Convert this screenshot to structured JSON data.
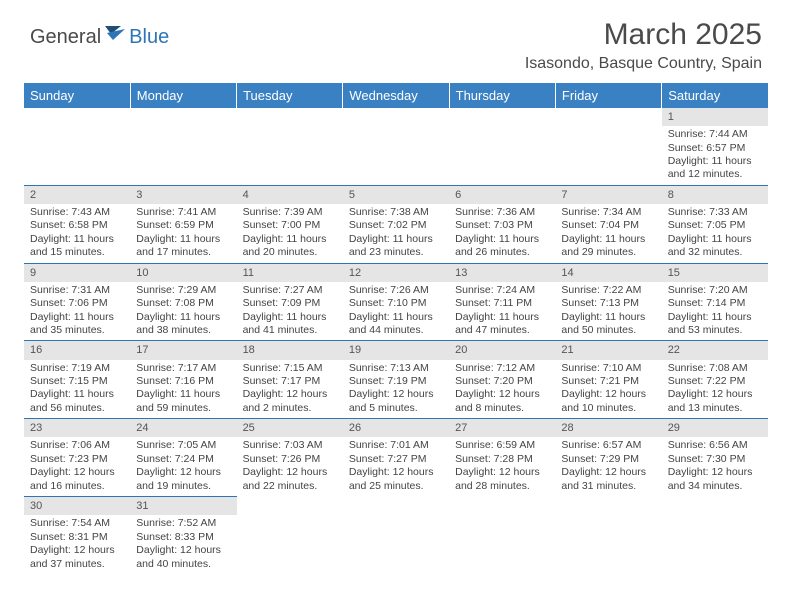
{
  "brand": {
    "part1": "General",
    "part2": "Blue"
  },
  "title": "March 2025",
  "location": "Isasondo, Basque Country, Spain",
  "colors": {
    "header_bg": "#3a81c3",
    "header_text": "#ffffff",
    "border": "#2e75b6",
    "daynum_bg": "#e5e5e5",
    "text": "#444444",
    "brand_blue": "#2e75b6",
    "brand_gray": "#4a4a4a"
  },
  "weekdays": [
    "Sunday",
    "Monday",
    "Tuesday",
    "Wednesday",
    "Thursday",
    "Friday",
    "Saturday"
  ],
  "weeks": [
    [
      null,
      null,
      null,
      null,
      null,
      null,
      {
        "n": "1",
        "sr": "Sunrise: 7:44 AM",
        "ss": "Sunset: 6:57 PM",
        "dl": "Daylight: 11 hours and 12 minutes."
      }
    ],
    [
      {
        "n": "2",
        "sr": "Sunrise: 7:43 AM",
        "ss": "Sunset: 6:58 PM",
        "dl": "Daylight: 11 hours and 15 minutes."
      },
      {
        "n": "3",
        "sr": "Sunrise: 7:41 AM",
        "ss": "Sunset: 6:59 PM",
        "dl": "Daylight: 11 hours and 17 minutes."
      },
      {
        "n": "4",
        "sr": "Sunrise: 7:39 AM",
        "ss": "Sunset: 7:00 PM",
        "dl": "Daylight: 11 hours and 20 minutes."
      },
      {
        "n": "5",
        "sr": "Sunrise: 7:38 AM",
        "ss": "Sunset: 7:02 PM",
        "dl": "Daylight: 11 hours and 23 minutes."
      },
      {
        "n": "6",
        "sr": "Sunrise: 7:36 AM",
        "ss": "Sunset: 7:03 PM",
        "dl": "Daylight: 11 hours and 26 minutes."
      },
      {
        "n": "7",
        "sr": "Sunrise: 7:34 AM",
        "ss": "Sunset: 7:04 PM",
        "dl": "Daylight: 11 hours and 29 minutes."
      },
      {
        "n": "8",
        "sr": "Sunrise: 7:33 AM",
        "ss": "Sunset: 7:05 PM",
        "dl": "Daylight: 11 hours and 32 minutes."
      }
    ],
    [
      {
        "n": "9",
        "sr": "Sunrise: 7:31 AM",
        "ss": "Sunset: 7:06 PM",
        "dl": "Daylight: 11 hours and 35 minutes."
      },
      {
        "n": "10",
        "sr": "Sunrise: 7:29 AM",
        "ss": "Sunset: 7:08 PM",
        "dl": "Daylight: 11 hours and 38 minutes."
      },
      {
        "n": "11",
        "sr": "Sunrise: 7:27 AM",
        "ss": "Sunset: 7:09 PM",
        "dl": "Daylight: 11 hours and 41 minutes."
      },
      {
        "n": "12",
        "sr": "Sunrise: 7:26 AM",
        "ss": "Sunset: 7:10 PM",
        "dl": "Daylight: 11 hours and 44 minutes."
      },
      {
        "n": "13",
        "sr": "Sunrise: 7:24 AM",
        "ss": "Sunset: 7:11 PM",
        "dl": "Daylight: 11 hours and 47 minutes."
      },
      {
        "n": "14",
        "sr": "Sunrise: 7:22 AM",
        "ss": "Sunset: 7:13 PM",
        "dl": "Daylight: 11 hours and 50 minutes."
      },
      {
        "n": "15",
        "sr": "Sunrise: 7:20 AM",
        "ss": "Sunset: 7:14 PM",
        "dl": "Daylight: 11 hours and 53 minutes."
      }
    ],
    [
      {
        "n": "16",
        "sr": "Sunrise: 7:19 AM",
        "ss": "Sunset: 7:15 PM",
        "dl": "Daylight: 11 hours and 56 minutes."
      },
      {
        "n": "17",
        "sr": "Sunrise: 7:17 AM",
        "ss": "Sunset: 7:16 PM",
        "dl": "Daylight: 11 hours and 59 minutes."
      },
      {
        "n": "18",
        "sr": "Sunrise: 7:15 AM",
        "ss": "Sunset: 7:17 PM",
        "dl": "Daylight: 12 hours and 2 minutes."
      },
      {
        "n": "19",
        "sr": "Sunrise: 7:13 AM",
        "ss": "Sunset: 7:19 PM",
        "dl": "Daylight: 12 hours and 5 minutes."
      },
      {
        "n": "20",
        "sr": "Sunrise: 7:12 AM",
        "ss": "Sunset: 7:20 PM",
        "dl": "Daylight: 12 hours and 8 minutes."
      },
      {
        "n": "21",
        "sr": "Sunrise: 7:10 AM",
        "ss": "Sunset: 7:21 PM",
        "dl": "Daylight: 12 hours and 10 minutes."
      },
      {
        "n": "22",
        "sr": "Sunrise: 7:08 AM",
        "ss": "Sunset: 7:22 PM",
        "dl": "Daylight: 12 hours and 13 minutes."
      }
    ],
    [
      {
        "n": "23",
        "sr": "Sunrise: 7:06 AM",
        "ss": "Sunset: 7:23 PM",
        "dl": "Daylight: 12 hours and 16 minutes."
      },
      {
        "n": "24",
        "sr": "Sunrise: 7:05 AM",
        "ss": "Sunset: 7:24 PM",
        "dl": "Daylight: 12 hours and 19 minutes."
      },
      {
        "n": "25",
        "sr": "Sunrise: 7:03 AM",
        "ss": "Sunset: 7:26 PM",
        "dl": "Daylight: 12 hours and 22 minutes."
      },
      {
        "n": "26",
        "sr": "Sunrise: 7:01 AM",
        "ss": "Sunset: 7:27 PM",
        "dl": "Daylight: 12 hours and 25 minutes."
      },
      {
        "n": "27",
        "sr": "Sunrise: 6:59 AM",
        "ss": "Sunset: 7:28 PM",
        "dl": "Daylight: 12 hours and 28 minutes."
      },
      {
        "n": "28",
        "sr": "Sunrise: 6:57 AM",
        "ss": "Sunset: 7:29 PM",
        "dl": "Daylight: 12 hours and 31 minutes."
      },
      {
        "n": "29",
        "sr": "Sunrise: 6:56 AM",
        "ss": "Sunset: 7:30 PM",
        "dl": "Daylight: 12 hours and 34 minutes."
      }
    ],
    [
      {
        "n": "30",
        "sr": "Sunrise: 7:54 AM",
        "ss": "Sunset: 8:31 PM",
        "dl": "Daylight: 12 hours and 37 minutes."
      },
      {
        "n": "31",
        "sr": "Sunrise: 7:52 AM",
        "ss": "Sunset: 8:33 PM",
        "dl": "Daylight: 12 hours and 40 minutes."
      },
      null,
      null,
      null,
      null,
      null
    ]
  ]
}
